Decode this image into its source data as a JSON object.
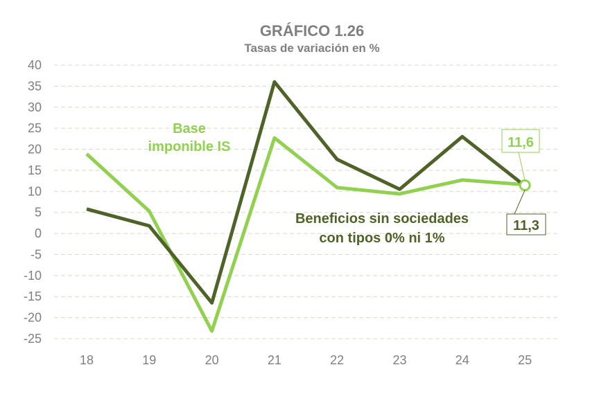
{
  "chart_data": {
    "type": "line",
    "title": "GRÁFICO 1.26",
    "subtitle": "Tasas de variación en %",
    "categories": [
      "18",
      "19",
      "20",
      "21",
      "22",
      "23",
      "24",
      "25"
    ],
    "ylim": [
      -25,
      40
    ],
    "yticks": [
      "40",
      "35",
      "30",
      "25",
      "20",
      "15",
      "10",
      "5",
      "0",
      "-5",
      "-10",
      "-15",
      "-20",
      "-25"
    ],
    "grid": true,
    "series": [
      {
        "name": "Beneficios sin sociedades con tipos 0% ni 1%",
        "color": "#4f6228",
        "values": [
          5.8,
          1.8,
          -16.5,
          36.0,
          17.6,
          10.5,
          23.0,
          11.3
        ]
      },
      {
        "name": "Base imponible IS",
        "color": "#92d050",
        "values": [
          18.9,
          5.3,
          -23.2,
          22.7,
          10.9,
          9.4,
          12.7,
          11.6
        ]
      }
    ],
    "annotations": {
      "light_last": "11,6",
      "dark_last": "11,3"
    },
    "legend_labels": {
      "light_line1": "Base",
      "light_line2": "imponible IS",
      "dark_line1": "Beneficios sin sociedades",
      "dark_line2": "con tipos 0% ni 1%"
    }
  }
}
